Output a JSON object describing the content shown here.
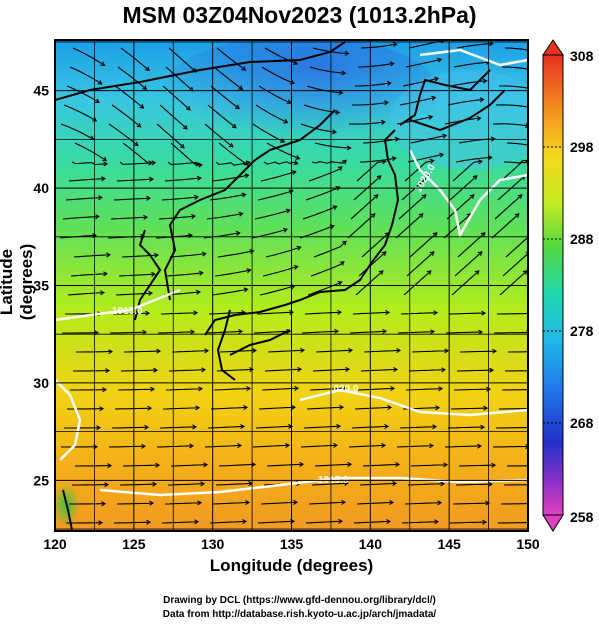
{
  "title": "MSM 03Z04Nov2023 (1013.2hPa)",
  "credits": [
    "Drawing by DCL (https://www.gfd-dennou.org/library/dcl/)",
    "Data from http://database.rish.kyoto-u.ac.jp/arch/jmadata/"
  ],
  "map": {
    "xlabel": "Longitude (degrees)",
    "ylabel": "Latitude  (degrees)",
    "lon_range": [
      120,
      150
    ],
    "lat_range": [
      22.4,
      47.6
    ],
    "lon_ticks": [
      120,
      125,
      130,
      135,
      140,
      145,
      150
    ],
    "lat_ticks": [
      25,
      30,
      35,
      40,
      45
    ],
    "contour_labels": [
      "1020.0",
      "1020.0",
      "1015.0",
      "1015.0"
    ]
  },
  "colorbar": {
    "min": 258,
    "max": 308,
    "labels": [
      308,
      298,
      288,
      278,
      268,
      258
    ]
  },
  "colors": {
    "warm": "#f2a020",
    "mid": "#8fe000",
    "cool": "#2ec0e0",
    "cold": "#3070e0",
    "contour": "#ffffff",
    "coast": "#000000"
  }
}
